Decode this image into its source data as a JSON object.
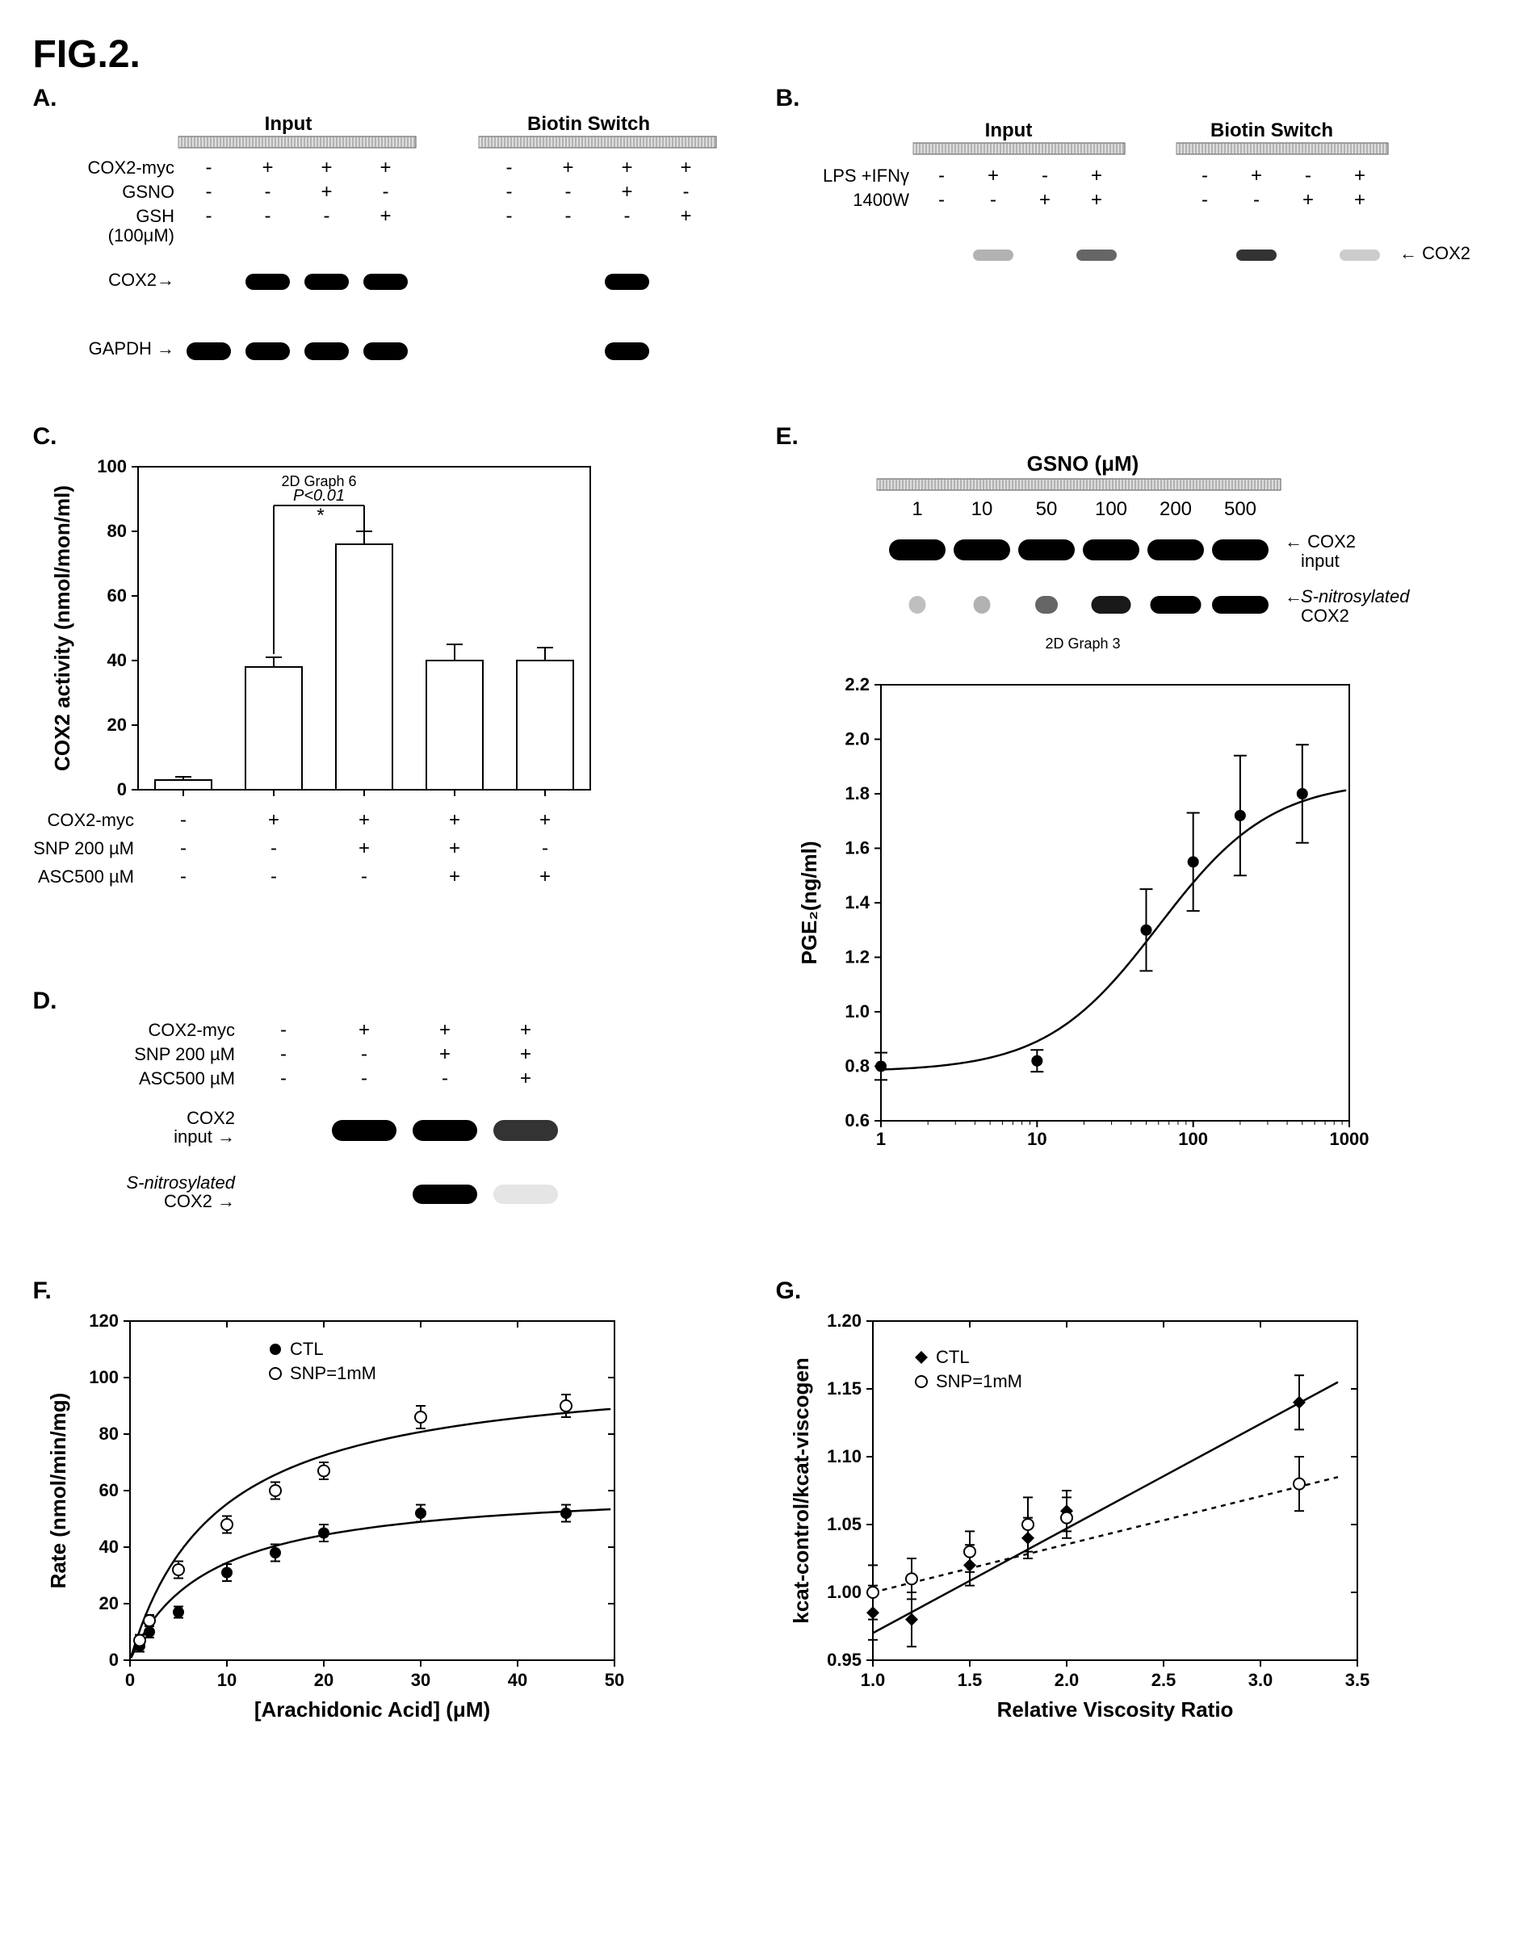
{
  "figure_title": "FIG.2.",
  "panelA": {
    "label": "A.",
    "group_labels": [
      "Input",
      "Biotin Switch"
    ],
    "row_labels": [
      "COX2-myc",
      "GSNO",
      "GSH",
      "(100μM)"
    ],
    "matrix_input": [
      [
        "-",
        "+",
        "+",
        "+"
      ],
      [
        "-",
        "-",
        "+",
        "-"
      ],
      [
        "-",
        "-",
        "-",
        "+"
      ]
    ],
    "matrix_biotin": [
      [
        "-",
        "+",
        "+",
        "+"
      ],
      [
        "-",
        "-",
        "+",
        "-"
      ],
      [
        "-",
        "-",
        "-",
        "+"
      ]
    ],
    "band_labels": [
      "COX2→",
      "GAPDH →"
    ],
    "band_lanes_cox2_input": [
      0,
      1,
      1,
      1
    ],
    "band_lanes_cox2_biotin": [
      0,
      0,
      1,
      0
    ],
    "band_lanes_gapdh_input": [
      1,
      1,
      1,
      1
    ],
    "band_lanes_gapdh_biotin": [
      0,
      0,
      1,
      0
    ]
  },
  "panelB": {
    "label": "B.",
    "group_labels": [
      "Input",
      "Biotin Switch"
    ],
    "row_labels": [
      "LPS +IFNγ",
      "1400W"
    ],
    "matrix_input": [
      [
        "-",
        "+",
        "-",
        "+"
      ],
      [
        "-",
        "-",
        "+",
        "+"
      ]
    ],
    "matrix_biotin": [
      [
        "-",
        "+",
        "-",
        "+"
      ],
      [
        "-",
        "-",
        "+",
        "+"
      ]
    ],
    "band_label_right": "← COX2",
    "band_input": [
      0,
      0.3,
      0,
      0.6
    ],
    "band_biotin": [
      0,
      0.8,
      0,
      0.2
    ]
  },
  "panelC": {
    "label": "C.",
    "type": "bar",
    "ylabel": "COX2 activity (nmol/mon/ml)",
    "title_small": "2D Graph 6",
    "pvalue": "P<0.01",
    "ylim": [
      0,
      100
    ],
    "ytick_step": 20,
    "bars": [
      3,
      38,
      76,
      40,
      40
    ],
    "err": [
      1,
      3,
      4,
      5,
      4
    ],
    "row_labels": [
      "COX2-myc",
      "SNP 200 µM",
      "ASC500 µM"
    ],
    "matrix": [
      [
        "-",
        "+",
        "+",
        "+",
        "+"
      ],
      [
        "-",
        "-",
        "+",
        "+",
        "-"
      ],
      [
        "-",
        "-",
        "-",
        "+",
        "+"
      ]
    ],
    "bar_color": "#ffffff",
    "bar_border": "#000000",
    "grid_color": "#bbbbbb"
  },
  "panelD": {
    "label": "D.",
    "row_labels": [
      "COX2-myc",
      "SNP 200 µM",
      "ASC500 µM"
    ],
    "matrix": [
      [
        "-",
        "+",
        "+",
        "+"
      ],
      [
        "-",
        "-",
        "+",
        "+"
      ],
      [
        "-",
        "-",
        "-",
        "+"
      ]
    ],
    "band1_label": "COX2\ninput →",
    "band2_label": "S-nitrosylated\nCOX2 →",
    "band1": [
      0,
      1,
      1,
      0.8
    ],
    "band2": [
      0,
      0,
      1,
      0.1
    ]
  },
  "panelE": {
    "label": "E.",
    "top_title": "GSNO (μM)",
    "conc": [
      "1",
      "10",
      "50",
      "100",
      "200",
      "500"
    ],
    "band1_label": "← COX2\n   input",
    "band2_label": "← S-nitrosylated\n   COX2",
    "band1": [
      1,
      1,
      1,
      1,
      1,
      1
    ],
    "band2": [
      0.05,
      0.1,
      0.4,
      0.7,
      0.9,
      1
    ],
    "subcaption": "2D Graph 3",
    "chart": {
      "type": "line-scatter",
      "ylabel": "PGE₂(ng/ml)",
      "xlog": true,
      "xlim": [
        1,
        1000
      ],
      "xticks": [
        1,
        10,
        100,
        1000
      ],
      "ylim": [
        0.6,
        2.2
      ],
      "ytick_step": 0.2,
      "x": [
        1,
        10,
        50,
        100,
        200,
        500
      ],
      "y": [
        0.8,
        0.82,
        1.3,
        1.55,
        1.72,
        1.8
      ],
      "err": [
        0.05,
        0.04,
        0.15,
        0.18,
        0.22,
        0.18
      ],
      "marker": "circle-filled",
      "line_color": "#000000"
    }
  },
  "panelF": {
    "label": "F.",
    "type": "line-scatter",
    "ylabel": "Rate (nmol/min/mg)",
    "xlabel": "[Arachidonic Acid] (μM)",
    "xlim": [
      0,
      50
    ],
    "xtick_step": 10,
    "ylim": [
      0,
      120
    ],
    "ytick_step": 20,
    "series": [
      {
        "name": "CTL",
        "marker": "circle-filled",
        "color": "#000000",
        "x": [
          1,
          2,
          5,
          10,
          15,
          20,
          30,
          45
        ],
        "y": [
          5,
          10,
          17,
          31,
          38,
          45,
          52,
          52
        ],
        "err": [
          2,
          2,
          2,
          3,
          3,
          3,
          3,
          3
        ]
      },
      {
        "name": "SNP=1mM",
        "marker": "circle-open",
        "color": "#000000",
        "x": [
          1,
          2,
          5,
          10,
          15,
          20,
          30,
          45
        ],
        "y": [
          7,
          14,
          32,
          48,
          60,
          67,
          86,
          90
        ],
        "err": [
          2,
          2,
          3,
          3,
          3,
          3,
          4,
          4
        ]
      }
    ],
    "fit_ctl": [
      [
        0,
        0
      ],
      [
        50,
        56
      ]
    ],
    "fit_snp": [
      [
        0,
        0
      ],
      [
        50,
        93
      ]
    ]
  },
  "panelG": {
    "label": "G.",
    "type": "line-scatter",
    "ylabel": "kcat-control/kcat-viscogen",
    "xlabel": "Relative Viscosity Ratio",
    "xlim": [
      1.0,
      3.5
    ],
    "xtick_step": 0.5,
    "ylim": [
      0.95,
      1.2
    ],
    "ytick_step": 0.05,
    "series": [
      {
        "name": "CTL",
        "marker": "diamond-filled",
        "color": "#000000",
        "x": [
          1.0,
          1.2,
          1.5,
          1.8,
          2.0,
          3.2
        ],
        "y": [
          0.985,
          0.98,
          1.02,
          1.04,
          1.06,
          1.14
        ],
        "err": [
          0.02,
          0.02,
          0.015,
          0.015,
          0.015,
          0.02
        ]
      },
      {
        "name": "SNP=1mM",
        "marker": "circle-open",
        "color": "#000000",
        "x": [
          1.0,
          1.2,
          1.5,
          1.8,
          2.0,
          3.2
        ],
        "y": [
          1.0,
          1.01,
          1.03,
          1.05,
          1.055,
          1.08
        ],
        "err": [
          0.02,
          0.015,
          0.015,
          0.02,
          0.015,
          0.02
        ]
      }
    ],
    "line_ctl_dash": false,
    "line_snp_dash": true
  }
}
